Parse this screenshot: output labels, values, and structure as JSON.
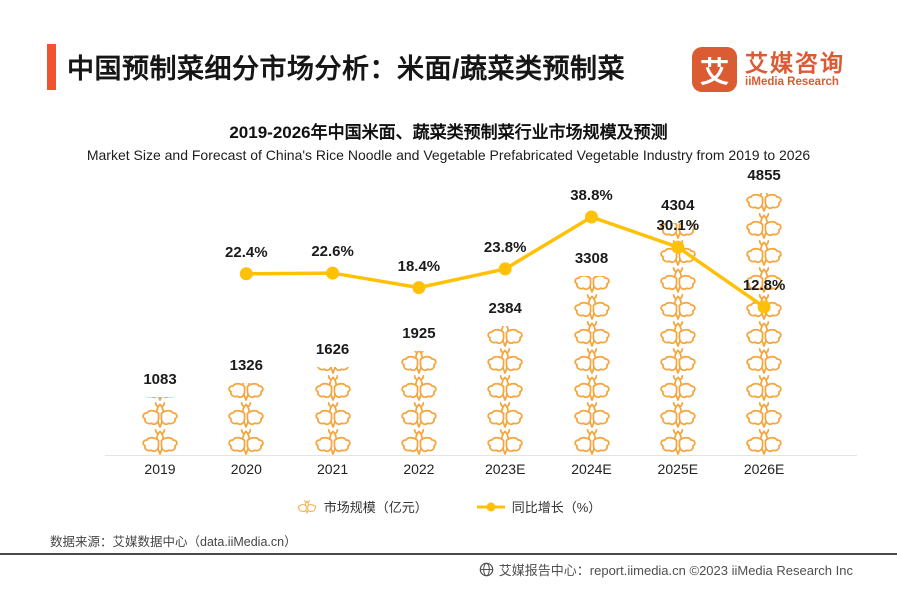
{
  "header": {
    "title": "中国预制菜细分市场分析：米面/蔬菜类预制菜",
    "logo": {
      "mark": "艾",
      "name_zh": "艾媒咨询",
      "name_en": "iiMedia Research"
    }
  },
  "chart_data": {
    "type": "bar",
    "subtype": "pictogram-bar with line overlay",
    "title": "2019-2026年中国米面、蔬菜类预制菜行业市场规模及预测",
    "subtitle": "Market Size and Forecast of China's Rice Noodle and Vegetable Prefabricated Vegetable Industry from 2019 to 2026",
    "categories": [
      "2019",
      "2020",
      "2021",
      "2022",
      "2023E",
      "2024E",
      "2025E",
      "2026E"
    ],
    "series": [
      {
        "name": "市场规模（亿元）",
        "type": "pictogram-bar",
        "values": [
          1083,
          1326,
          1626,
          1925,
          2384,
          3308,
          4304,
          4855
        ]
      },
      {
        "name": "同比增长（%）",
        "type": "line",
        "values": [
          null,
          22.4,
          22.6,
          18.4,
          23.8,
          38.8,
          30.1,
          12.8
        ]
      }
    ],
    "legend_position": "bottom",
    "grid": false,
    "colors": {
      "pictogram_icon": "#F5A53C",
      "line": "#FFC107",
      "labels": "#1b1b1b",
      "accent": "#F0532D"
    }
  },
  "footer": {
    "source": "数据来源：艾媒数据中心（data.iiMedia.cn）",
    "center_text": "艾媒报告中心：report.iimedia.cn ©2023 iiMedia Research Inc"
  }
}
